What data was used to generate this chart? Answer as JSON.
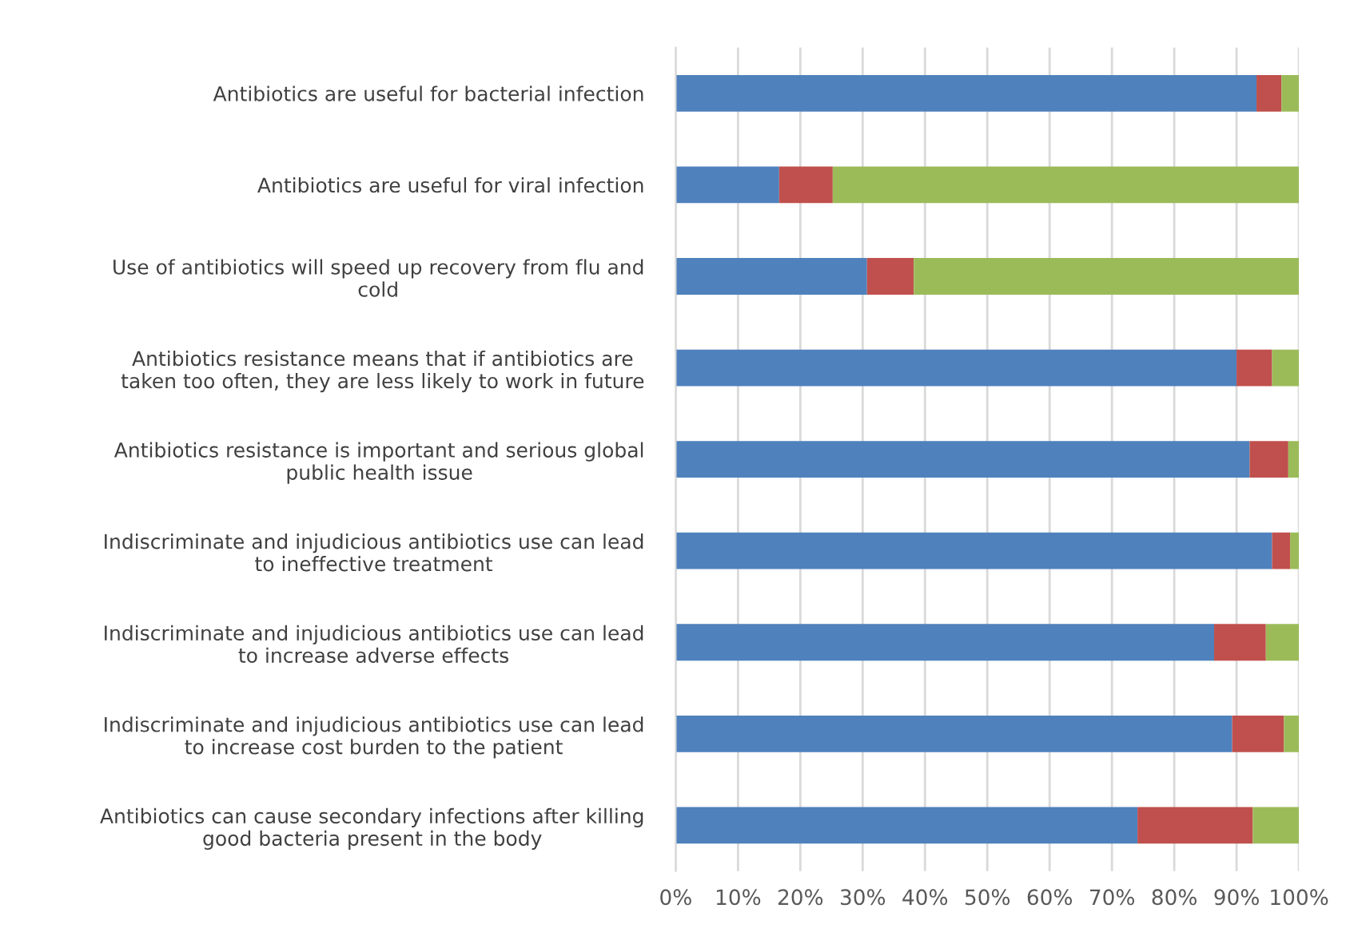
{
  "chart_data": {
    "type": "bar",
    "orientation": "horizontal",
    "stacked": true,
    "categories": [
      "Antibiotics are useful for bacterial infection",
      "Antibiotics are useful for viral infection",
      "Use of antibiotics will speed up recovery from flu and cold",
      "Antibiotics resistance means that if antibiotics are taken too often, they are less likely to work in future",
      "Antibiotics resistance is important and serious global public health issue",
      "Indiscriminate and injudicious antibiotics use can lead to ineffective treatment",
      "Indiscriminate and injudicious antibiotics use can lead to increase adverse effects",
      "Indiscriminate and injudicious antibiotics use can lead to increase cost burden to the patient",
      "Antibiotics can cause secondary infections after killing good bacteria present in the body"
    ],
    "series": [
      {
        "color": "#4f81bd",
        "values": [
          93.2,
          16.6,
          30.7,
          90.0,
          92.1,
          95.7,
          86.4,
          89.3,
          74.1
        ]
      },
      {
        "color": "#c0504d",
        "values": [
          4.0,
          8.6,
          7.5,
          5.7,
          6.2,
          2.9,
          8.3,
          8.3,
          18.5
        ]
      },
      {
        "color": "#9bbb59",
        "values": [
          2.8,
          74.8,
          61.8,
          4.3,
          1.7,
          1.4,
          5.3,
          2.4,
          7.4
        ]
      }
    ],
    "xlim": [
      0,
      100
    ],
    "xticks": [
      {
        "value": 0,
        "label": "0%"
      },
      {
        "value": 10,
        "label": "10%"
      },
      {
        "value": 20,
        "label": "20%"
      },
      {
        "value": 30,
        "label": "30%"
      },
      {
        "value": 40,
        "label": "40%"
      },
      {
        "value": 50,
        "label": "50%"
      },
      {
        "value": 60,
        "label": "60%"
      },
      {
        "value": 70,
        "label": "70%"
      },
      {
        "value": 80,
        "label": "80%"
      },
      {
        "value": 90,
        "label": "90%"
      },
      {
        "value": 100,
        "label": "100%"
      }
    ],
    "grid": "x"
  }
}
